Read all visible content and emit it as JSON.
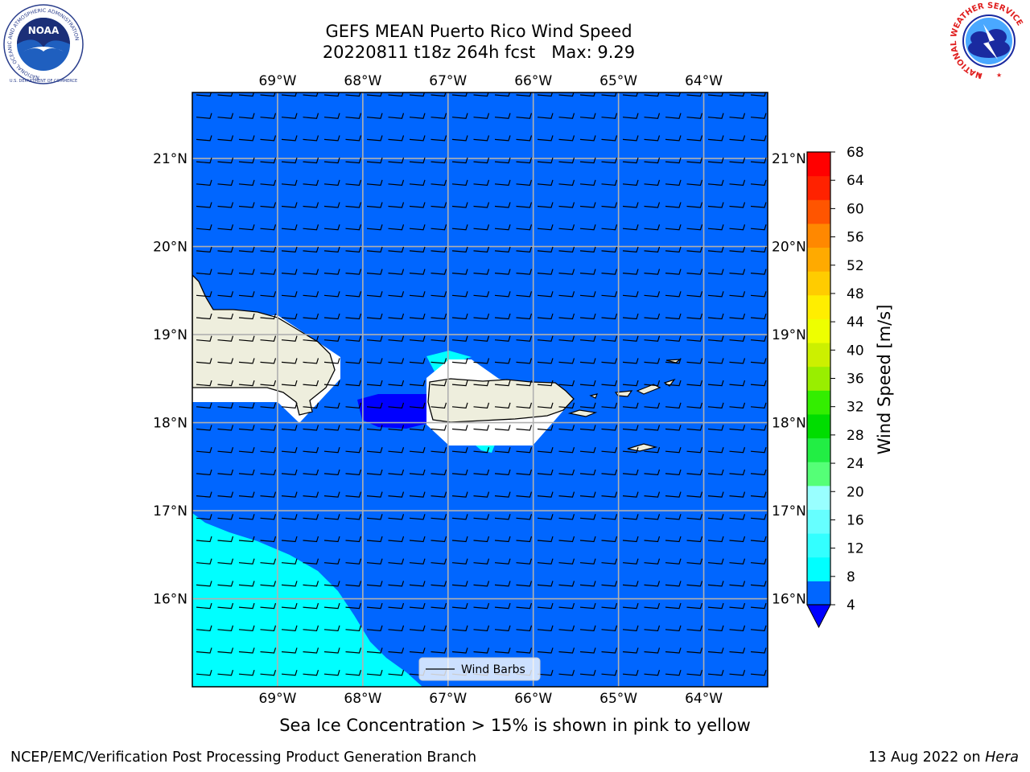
{
  "header": {
    "title_line1": "GEFS MEAN Puerto Rico Wind Speed",
    "title_line2": "20220811 t18z 264h fcst   Max: 9.29"
  },
  "logos": {
    "left_name": "NOAA",
    "left_ring_text": "NATIONAL OCEANIC AND ATMOSPHERIC ADMINISTRATION",
    "left_bottom_text": "U.S. DEPARTMENT OF COMMERCE",
    "right_ring_text": "NATIONAL WEATHER SERVICE"
  },
  "caption": "Sea Ice Concentration > 15% is shown in pink to yellow",
  "footer": {
    "left": "NCEP/EMC/Verification Post Processing Product Generation Branch",
    "date": "13 Aug 2022 on ",
    "machine": "Hera"
  },
  "legend": {
    "label": "Wind Barbs"
  },
  "colorbar": {
    "label": "Wind Speed [m/s]",
    "ticks": [
      "4",
      "8",
      "12",
      "16",
      "20",
      "24",
      "28",
      "32",
      "36",
      "40",
      "44",
      "48",
      "52",
      "56",
      "60",
      "64",
      "68"
    ],
    "colors": [
      "#0066ff",
      "#00ffff",
      "#33ffff",
      "#66ffff",
      "#99ffff",
      "#55ff77",
      "#22ee44",
      "#00dd00",
      "#33ee00",
      "#99ee00",
      "#ccf000",
      "#eeff00",
      "#ffee00",
      "#ffcc00",
      "#ffaa00",
      "#ff8800",
      "#ff5500",
      "#ff2200",
      "#ff0000"
    ],
    "under_color": "#0000ff"
  },
  "chart_data": {
    "type": "heatmap",
    "title": "GEFS MEAN Puerto Rico Wind Speed",
    "subtitle": "20220811 t18z 264h fcst   Max: 9.29",
    "variable": "Wind Speed",
    "units": "m/s",
    "max": 9.29,
    "lon_range": [
      -70.0,
      -63.25
    ],
    "lat_range": [
      15.0,
      21.75
    ],
    "lon_ticks": [
      "69°W",
      "68°W",
      "67°W",
      "66°W",
      "65°W",
      "64°W"
    ],
    "lon_values": [
      -69,
      -68,
      -67,
      -66,
      -65,
      -64
    ],
    "lat_ticks": [
      "16°N",
      "17°N",
      "18°N",
      "19°N",
      "20°N",
      "21°N"
    ],
    "lat_values": [
      16,
      17,
      18,
      19,
      20,
      21
    ],
    "levels": [
      4,
      8,
      12,
      16,
      20,
      24,
      28,
      32,
      36,
      40,
      44,
      48,
      52,
      56,
      60,
      64,
      68
    ],
    "gridlines": true,
    "wind_barbs": true,
    "dominant_range": [
      4,
      8
    ],
    "regions": [
      {
        "range": "8-12",
        "area": "southwest corner, south of about 17°N and west of about 67.3°W"
      },
      {
        "range": "8-12",
        "area": "small patches northwest and south of Puerto Rico"
      },
      {
        "range": "< 4",
        "area": "Mona Passage, about 18.1°N, 67.3°W to 68.1°W"
      }
    ]
  }
}
